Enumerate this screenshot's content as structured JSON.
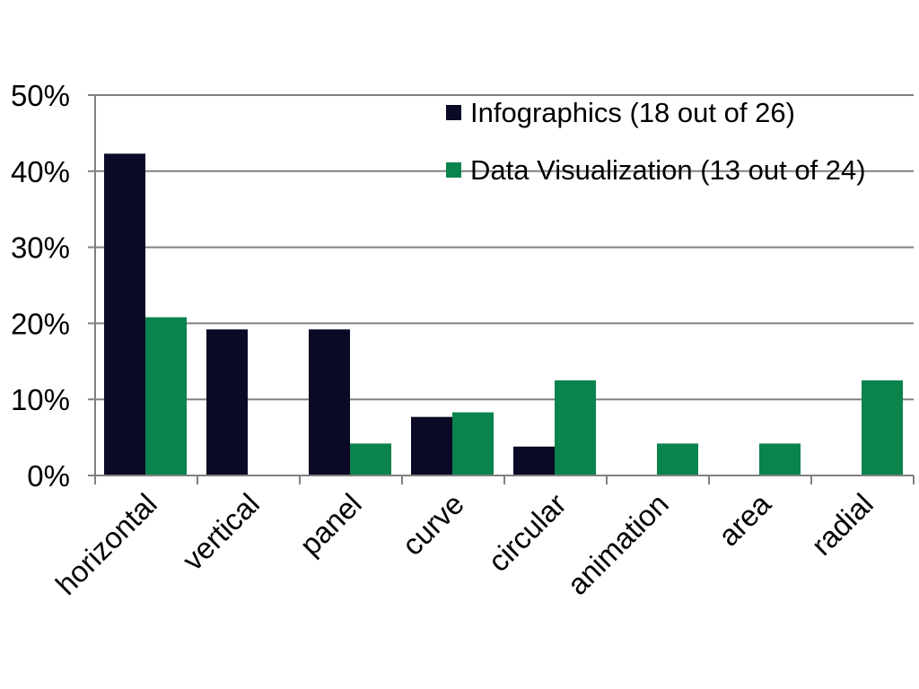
{
  "chart_data": {
    "type": "bar",
    "title": "",
    "xlabel": "",
    "ylabel": "",
    "categories": [
      "horizontal",
      "vertical",
      "panel",
      "curve",
      "circular",
      "animation",
      "area",
      "radial"
    ],
    "series": [
      {
        "name": "Infographics (18 out of 26)",
        "color": "#0a0a26",
        "values": [
          42.3,
          19.2,
          19.2,
          7.7,
          3.8,
          0,
          0,
          0
        ]
      },
      {
        "name": "Data Visualization (13 out of 24)",
        "color": "#0b834c",
        "values": [
          20.8,
          0,
          4.2,
          8.3,
          12.5,
          4.2,
          4.2,
          12.5
        ]
      }
    ],
    "ylim": [
      0,
      50
    ],
    "yticks": [
      0,
      10,
      20,
      30,
      40,
      50
    ],
    "ytick_labels": [
      "0%",
      "10%",
      "20%",
      "30%",
      "40%",
      "50%"
    ],
    "grid": true,
    "legend_position": "top-right",
    "colors": {
      "grid": "#808080",
      "axis": "#808080",
      "text": "#000000"
    }
  }
}
